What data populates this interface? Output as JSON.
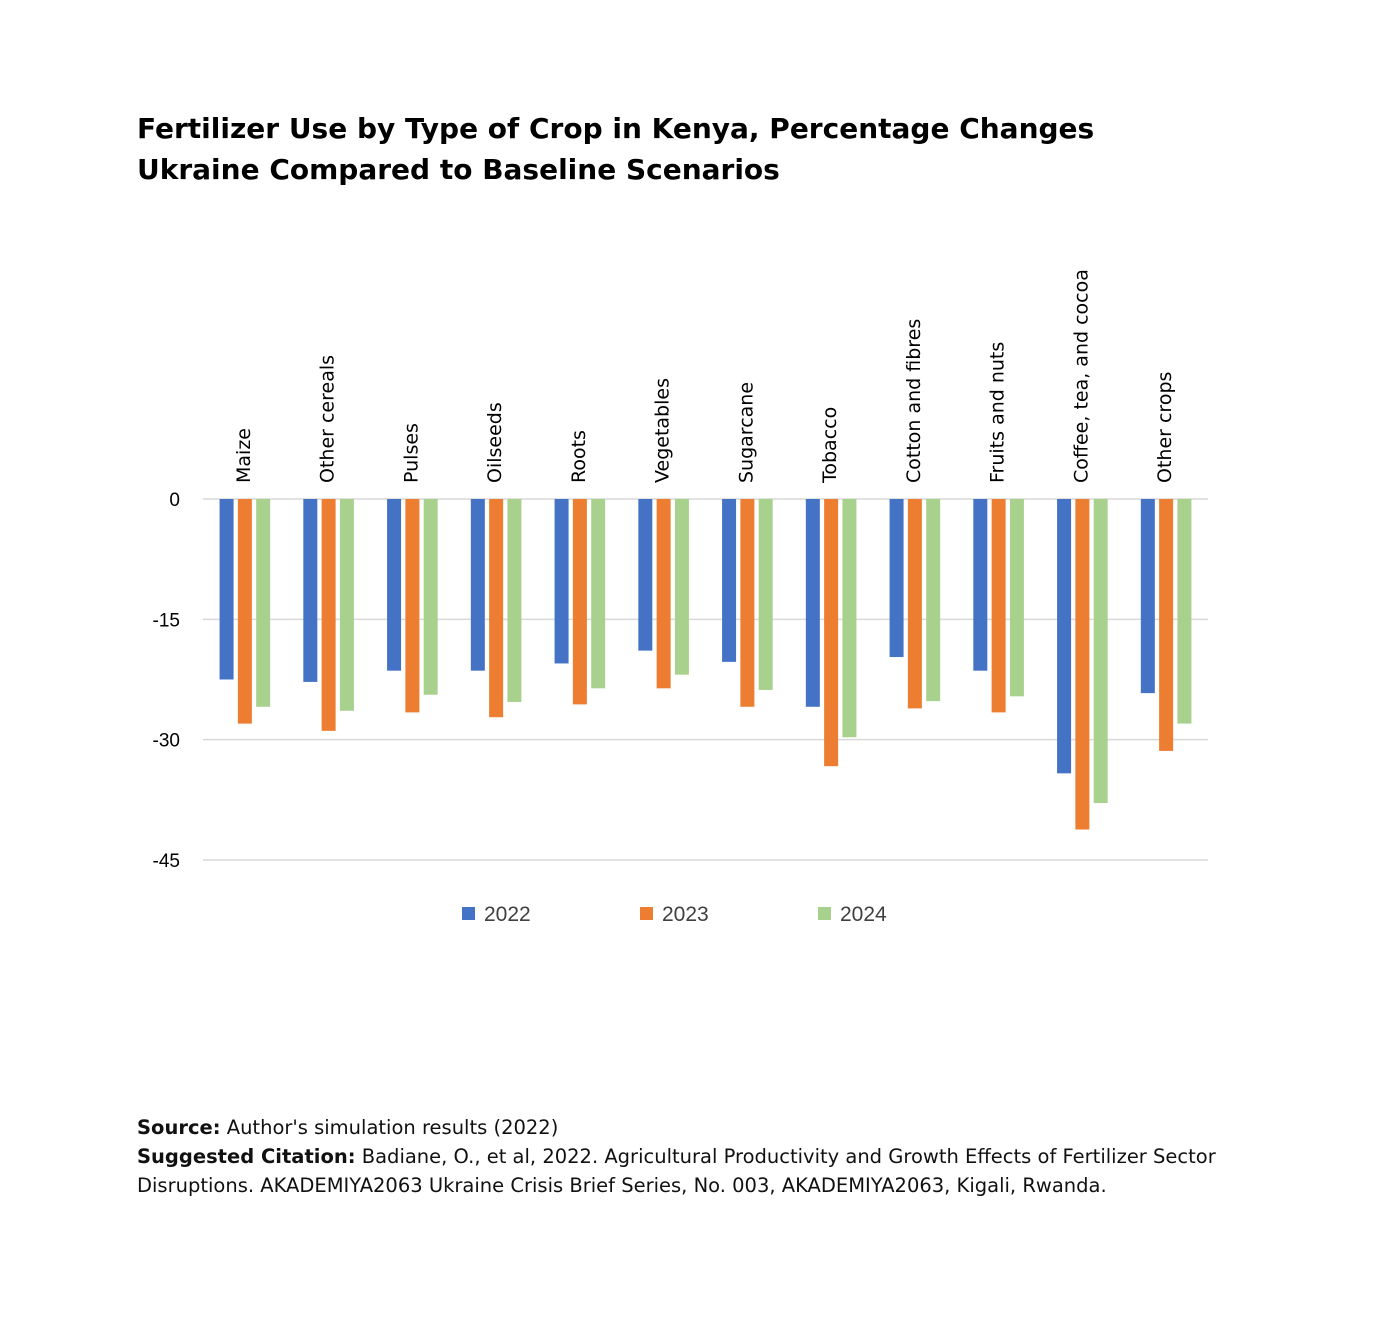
{
  "chart_data": {
    "type": "bar",
    "title": [
      "Fertilizer Use by Type of Crop in Kenya, Percentage Changes",
      "Ukraine Compared to Baseline Scenarios"
    ],
    "categories": [
      "Maize",
      "Other cereals",
      "Pulses",
      "Oilseeds",
      "Roots",
      "Vegetables",
      "Sugarcane",
      "Tobacco",
      "Cotton and fibres",
      "Fruits and nuts",
      "Coffee, tea, and cocoa",
      "Other crops"
    ],
    "series": [
      {
        "name": "2022",
        "color": "#4472C4",
        "values": [
          -22.5,
          -22.8,
          -21.4,
          -21.4,
          -20.5,
          -18.9,
          -20.3,
          -25.9,
          -19.7,
          -21.4,
          -34.2,
          -24.2
        ]
      },
      {
        "name": "2023",
        "color": "#ED7D31",
        "values": [
          -28.0,
          -28.9,
          -26.6,
          -27.2,
          -25.6,
          -23.6,
          -25.9,
          -33.3,
          -26.1,
          -26.6,
          -41.2,
          -31.4
        ]
      },
      {
        "name": "2024",
        "color": "#A9D18E",
        "values": [
          -25.9,
          -26.4,
          -24.4,
          -25.3,
          -23.6,
          -21.9,
          -23.8,
          -29.7,
          -25.2,
          -24.6,
          -37.9,
          -28.0
        ]
      }
    ],
    "yticks": [
      0,
      -15,
      -30,
      -45
    ],
    "ylim": [
      -45,
      0
    ],
    "grid": true,
    "legend": "bottom",
    "xlabel": "",
    "ylabel": ""
  },
  "footer": {
    "source_label": "Source:",
    "source_text": "Author's simulation results (2022)",
    "citation_label": "Suggested Citation:",
    "citation_text": "Badiane, O., et al, 2022. Agricultural Productivity and Growth Effects of Fertilizer Sector Disruptions. AKADEMIYA2063 Ukraine Crisis Brief Series, No. 003, AKADEMIYA2063, Kigali, Rwanda."
  }
}
